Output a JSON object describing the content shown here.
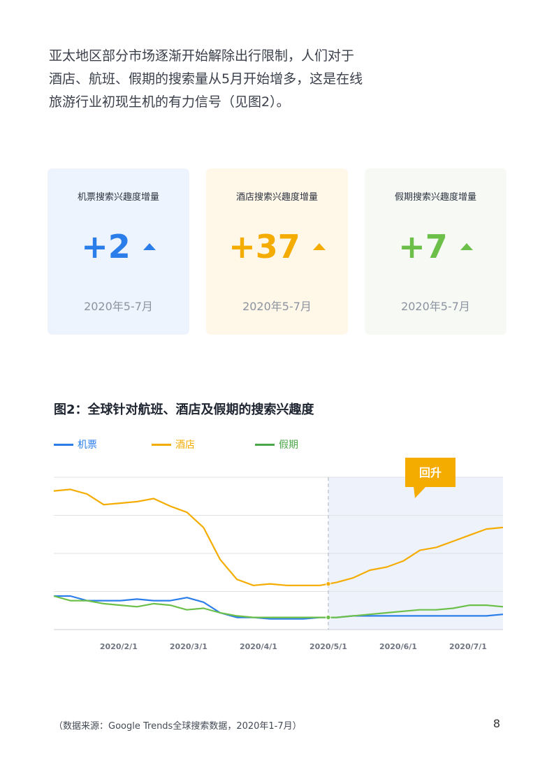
{
  "intro": {
    "line1": "亚太地区部分市场逐渐开始解除出行限制，人们对于",
    "line2": "酒店、航班、假期的搜索量从5月开始增多，这是在线",
    "line3": "旅游行业初现生机的有力信号（见图2）。"
  },
  "cards": [
    {
      "title": "机票搜索兴趣度增量",
      "value": "+2",
      "period": "2020年5-7月",
      "color": "#2b7de9",
      "bg": "#eef4fd"
    },
    {
      "title": "酒店搜索兴趣度增量",
      "value": "+37",
      "period": "2020年5-7月",
      "color": "#f5ac00",
      "bg": "#fff7e8"
    },
    {
      "title": "假期搜索兴趣度增量",
      "value": "+7",
      "period": "2020年5-7月",
      "color": "#6cc04a",
      "bg": "#f6f9f4"
    }
  ],
  "chart_title": "图2：全球针对航班、酒店及假期的搜索兴趣度",
  "legend": {
    "flights": "机票",
    "hotels": "酒店",
    "vacations": "假期"
  },
  "callout": "回升",
  "chart_data": {
    "type": "line",
    "x": [
      "2020/1/5",
      "2020/1/12",
      "2020/1/19",
      "2020/1/26",
      "2020/2/2",
      "2020/2/9",
      "2020/2/16",
      "2020/2/23",
      "2020/3/1",
      "2020/3/8",
      "2020/3/15",
      "2020/3/22",
      "2020/3/29",
      "2020/4/5",
      "2020/4/12",
      "2020/4/19",
      "2020/4/26",
      "2020/5/3",
      "2020/5/10",
      "2020/5/17",
      "2020/5/24",
      "2020/5/31",
      "2020/6/7",
      "2020/6/14",
      "2020/6/21",
      "2020/6/28",
      "2020/7/5",
      "2020/7/12"
    ],
    "tick_labels": [
      "2020/2/1",
      "2020/3/1",
      "2020/4/1",
      "2020/5/1",
      "2020/6/1",
      "2020/7/1"
    ],
    "tick_positions": [
      3.9,
      8.1,
      12.3,
      16.5,
      20.7,
      24.9
    ],
    "ylim": [
      0,
      100
    ],
    "grid": true,
    "highlight_from": "2020/5/1",
    "series": [
      {
        "name": "酒店",
        "color": "#f5ac00",
        "values": [
          91,
          92,
          89,
          82,
          83,
          84,
          86,
          81,
          77,
          67,
          46,
          33,
          29,
          30,
          29,
          29,
          29,
          31,
          34,
          39,
          41,
          45,
          52,
          54,
          58,
          62,
          66,
          67
        ]
      },
      {
        "name": "机票",
        "color": "#2b7de9",
        "values": [
          22,
          22,
          19,
          19,
          19,
          20,
          19,
          19,
          21,
          18,
          11,
          8,
          8,
          7,
          7,
          7,
          8,
          8,
          9,
          9,
          9,
          9,
          9,
          9,
          9,
          9,
          9,
          10
        ]
      },
      {
        "name": "假期",
        "color": "#6cc04a",
        "values": [
          22,
          19,
          19,
          17,
          16,
          15,
          17,
          16,
          13,
          14,
          11,
          9,
          8,
          8,
          8,
          8,
          8,
          8,
          9,
          10,
          11,
          12,
          13,
          13,
          14,
          16,
          16,
          15
        ]
      }
    ]
  },
  "source": "（数据来源：Google Trends全球搜索数据，2020年1-7月）",
  "page_number": "8"
}
